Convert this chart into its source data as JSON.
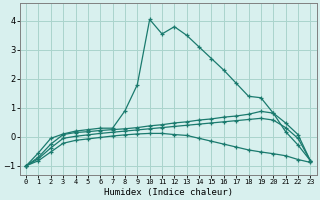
{
  "title": "",
  "xlabel": "Humidex (Indice chaleur)",
  "background_color": "#d8f0ee",
  "grid_color": "#aad4cc",
  "line_color": "#1a7a6e",
  "xlim": [
    -0.5,
    23.5
  ],
  "ylim": [
    -1.3,
    4.6
  ],
  "xticks": [
    0,
    1,
    2,
    3,
    4,
    5,
    6,
    7,
    8,
    9,
    10,
    11,
    12,
    13,
    14,
    15,
    16,
    17,
    18,
    19,
    20,
    21,
    22,
    23
  ],
  "yticks": [
    -1,
    0,
    1,
    2,
    3,
    4
  ],
  "line1_x": [
    0,
    1,
    2,
    3,
    4,
    5,
    6,
    7,
    8,
    9,
    10,
    11,
    12,
    13,
    14,
    15,
    16,
    17,
    18,
    19,
    20,
    21,
    22,
    23
  ],
  "line1_y": [
    -1.0,
    -0.55,
    -0.05,
    0.1,
    0.2,
    0.25,
    0.3,
    0.3,
    0.9,
    1.8,
    4.05,
    3.55,
    3.8,
    3.5,
    3.1,
    2.7,
    2.3,
    1.85,
    1.4,
    1.35,
    0.82,
    0.18,
    -0.28,
    -0.82
  ],
  "line2_x": [
    0,
    1,
    2,
    3,
    4,
    5,
    6,
    7,
    8,
    9,
    10,
    11,
    12,
    13,
    14,
    15,
    16,
    17,
    18,
    19,
    20,
    21,
    22,
    23
  ],
  "line2_y": [
    -1.0,
    -0.7,
    -0.25,
    0.08,
    0.15,
    0.18,
    0.22,
    0.25,
    0.28,
    0.32,
    0.38,
    0.42,
    0.48,
    0.52,
    0.58,
    0.62,
    0.68,
    0.72,
    0.78,
    0.88,
    0.82,
    0.48,
    0.08,
    -0.82
  ],
  "line3_x": [
    0,
    1,
    2,
    3,
    4,
    5,
    6,
    7,
    8,
    9,
    10,
    11,
    12,
    13,
    14,
    15,
    16,
    17,
    18,
    19,
    20,
    21,
    22,
    23
  ],
  "line3_y": [
    -1.0,
    -0.75,
    -0.38,
    -0.05,
    0.02,
    0.07,
    0.12,
    0.16,
    0.2,
    0.24,
    0.28,
    0.32,
    0.36,
    0.4,
    0.44,
    0.48,
    0.52,
    0.56,
    0.6,
    0.64,
    0.58,
    0.32,
    -0.05,
    -0.82
  ],
  "line4_x": [
    0,
    1,
    2,
    3,
    4,
    5,
    6,
    7,
    8,
    9,
    10,
    11,
    12,
    13,
    14,
    15,
    16,
    17,
    18,
    19,
    20,
    21,
    22,
    23
  ],
  "line4_y": [
    -1.0,
    -0.82,
    -0.52,
    -0.22,
    -0.12,
    -0.07,
    -0.02,
    0.03,
    0.07,
    0.1,
    0.12,
    0.12,
    0.08,
    0.05,
    -0.05,
    -0.15,
    -0.25,
    -0.35,
    -0.45,
    -0.52,
    -0.58,
    -0.65,
    -0.78,
    -0.88
  ]
}
